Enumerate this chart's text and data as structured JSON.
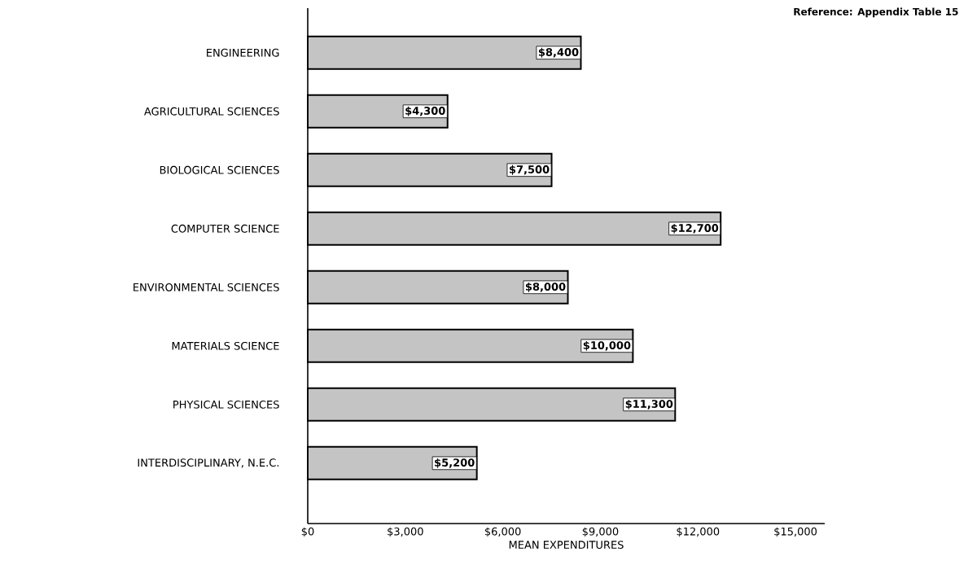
{
  "chart_data": {
    "type": "bar",
    "orientation": "horizontal",
    "xlabel": "MEAN EXPENDITURES",
    "categories": [
      "ENGINEERING",
      "AGRICULTURAL SCIENCES",
      "BIOLOGICAL SCIENCES",
      "COMPUTER SCIENCE",
      "ENVIRONMENTAL SCIENCES",
      "MATERIALS SCIENCE",
      "PHYSICAL SCIENCES",
      "INTERDISCIPLINARY, N.E.C."
    ],
    "values": [
      8400,
      4300,
      7500,
      12700,
      8000,
      10000,
      11300,
      5200
    ],
    "value_labels": [
      "$8,400",
      "$4,300",
      "$7,500",
      "$12,700",
      "$8,000",
      "$10,000",
      "$11,300",
      "$5,200"
    ],
    "color": "#c4c4c4",
    "xlim": [
      0,
      15900
    ],
    "xticks": [
      {
        "value": 0,
        "label": "$0"
      },
      {
        "value": 3000,
        "label": "$3,000"
      },
      {
        "value": 6000,
        "label": "$6,000"
      },
      {
        "value": 9000,
        "label": "$9,000"
      },
      {
        "value": 12000,
        "label": "$12,000"
      },
      {
        "value": 15000,
        "label": "$15,000"
      }
    ],
    "annotations": [
      "Reference:  Appendix Table 15"
    ]
  }
}
